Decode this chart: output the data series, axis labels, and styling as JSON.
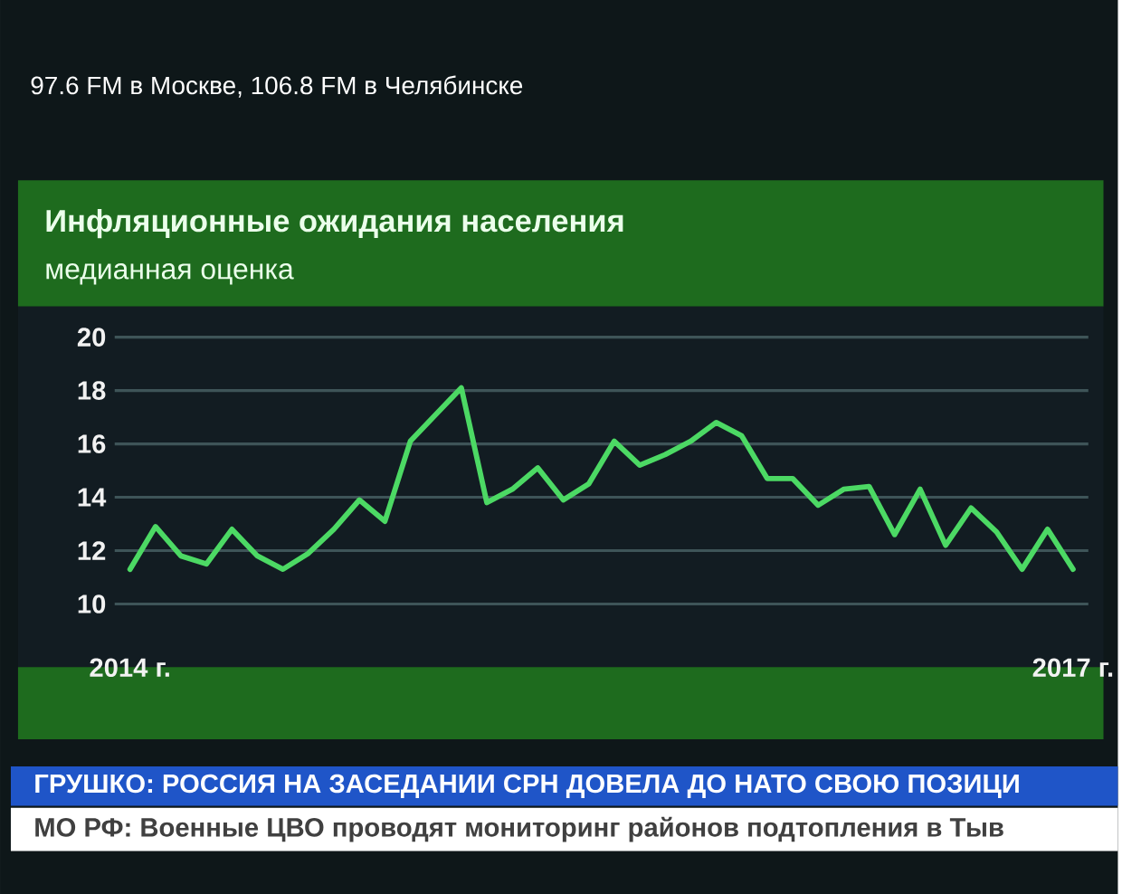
{
  "chart_data": {
    "type": "line",
    "title": "Инфляционные ожидания населения",
    "subtitle": "медианная оценка",
    "categories": [
      "2014 г.",
      null,
      null,
      null,
      null,
      null,
      null,
      null,
      null,
      null,
      null,
      null,
      null,
      null,
      null,
      null,
      null,
      null,
      null,
      null,
      null,
      null,
      null,
      null,
      null,
      null,
      null,
      null,
      null,
      null,
      null,
      null,
      null,
      null,
      null,
      null,
      null,
      "2017 г."
    ],
    "series": [
      {
        "color": "#4cd964",
        "values": [
          11.3,
          12.9,
          11.8,
          11.5,
          12.8,
          11.8,
          11.3,
          11.9,
          12.8,
          13.9,
          13.1,
          16.1,
          17.1,
          18.1,
          13.8,
          14.3,
          15.1,
          13.9,
          14.5,
          16.1,
          15.2,
          15.6,
          16.1,
          16.8,
          16.3,
          14.7,
          14.7,
          13.7,
          14.3,
          14.4,
          12.6,
          14.3,
          12.2,
          13.6,
          12.7,
          11.3,
          12.8,
          11.3
        ]
      }
    ],
    "ylim": [
      10,
      20
    ],
    "yticks": [
      10,
      12,
      14,
      16,
      18,
      20
    ],
    "grid": "y",
    "annotations": [
      "97.6 FM в Москве, 106.8 FM в Челябинске",
      "ГРУШКО: РОССИЯ НА ЗАСЕДАНИИ СРН ДОВЕЛА ДО НАТО СВОЮ ПОЗИЦИ",
      "МО РФ: Военные ЦВО проводят мониторинг районов подтопления в Тыв"
    ]
  }
}
